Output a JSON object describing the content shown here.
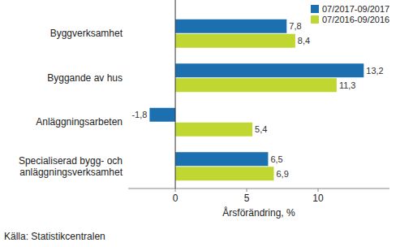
{
  "chart_data": {
    "type": "bar",
    "orientation": "horizontal",
    "categories": [
      "Byggverksamhet",
      "Byggande av hus",
      "Anläggningsarbeten",
      "Specialiserad bygg- och anläggningsverksamhet"
    ],
    "series": [
      {
        "name": "07/2017-09/2017",
        "color": "#1d70b0",
        "values": [
          7.8,
          13.2,
          -1.8,
          6.5
        ],
        "value_labels": [
          "7,8",
          "13,2",
          "-1,8",
          "6,5"
        ]
      },
      {
        "name": "07/2016-09/2016",
        "color": "#bfd730",
        "values": [
          8.4,
          11.3,
          5.4,
          6.9
        ],
        "value_labels": [
          "8,4",
          "11,3",
          "5,4",
          "6,9"
        ]
      }
    ],
    "x_label": "Årsförändring, %",
    "source": "Källa: Statistikcentralen",
    "xlim": [
      -3.3,
      15
    ],
    "xticks": [
      0,
      5,
      10
    ],
    "data_labels": true,
    "legend": "top-right",
    "grid": false
  }
}
